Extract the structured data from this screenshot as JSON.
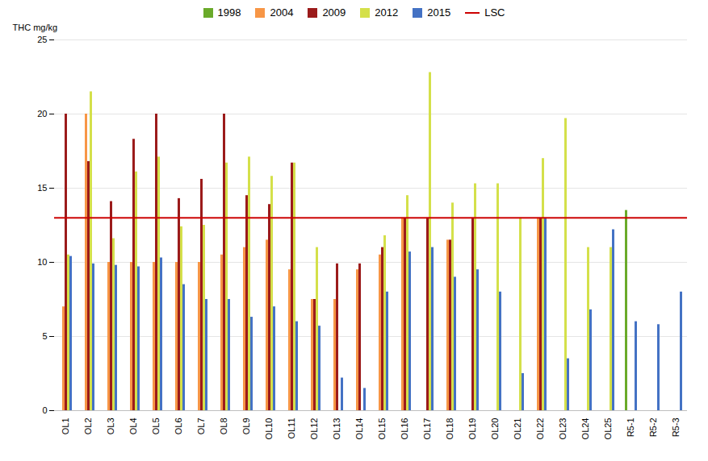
{
  "chart_data": {
    "type": "bar",
    "categories": [
      "OL1",
      "OL2",
      "OL3",
      "OL4",
      "OL5",
      "OL6",
      "OL7",
      "OL8",
      "OL9",
      "OL10",
      "OL11",
      "OL12",
      "OL13",
      "OL14",
      "OL15",
      "OL16",
      "OL17",
      "OL18",
      "OL19",
      "OL20",
      "OL21",
      "OL22",
      "OL23",
      "OL24",
      "OL25",
      "R5-1",
      "R5-2",
      "R5-3"
    ],
    "series": [
      {
        "name": "1998",
        "color": "#6aaa2a",
        "values": [
          null,
          null,
          null,
          null,
          null,
          null,
          null,
          null,
          null,
          null,
          null,
          null,
          null,
          null,
          null,
          null,
          null,
          null,
          null,
          null,
          null,
          null,
          null,
          null,
          null,
          13.5,
          null,
          null
        ]
      },
      {
        "name": "2004",
        "color": "#f79646",
        "values": [
          7.0,
          20.0,
          10.0,
          10.0,
          10.0,
          10.0,
          10.0,
          10.5,
          11.0,
          11.5,
          9.5,
          7.5,
          7.5,
          9.5,
          10.5,
          13.0,
          null,
          11.5,
          null,
          null,
          null,
          13.0,
          null,
          null,
          null,
          null,
          null,
          null
        ]
      },
      {
        "name": "2009",
        "color": "#9b1b1b",
        "values": [
          20.0,
          16.8,
          14.1,
          18.3,
          20.0,
          14.3,
          15.6,
          20.0,
          14.5,
          13.9,
          16.7,
          7.5,
          9.9,
          9.9,
          11.0,
          13.0,
          13.0,
          11.5,
          13.0,
          null,
          null,
          13.0,
          null,
          null,
          null,
          null,
          null,
          null
        ]
      },
      {
        "name": "2012",
        "color": "#d4e04a",
        "values": [
          10.5,
          21.5,
          11.6,
          16.1,
          17.1,
          12.4,
          12.5,
          16.7,
          17.1,
          15.8,
          16.7,
          11.0,
          null,
          null,
          11.8,
          14.5,
          22.8,
          14.0,
          15.3,
          15.3,
          13.0,
          17.0,
          19.7,
          11.0,
          11.0,
          null,
          null,
          null
        ]
      },
      {
        "name": "2015",
        "color": "#4472c4",
        "values": [
          10.4,
          9.9,
          9.8,
          9.7,
          10.3,
          8.5,
          7.5,
          7.5,
          6.3,
          7.0,
          6.0,
          5.7,
          2.2,
          1.5,
          8.0,
          10.7,
          11.0,
          9.0,
          9.5,
          8.0,
          2.5,
          13.0,
          3.5,
          6.8,
          12.2,
          6.0,
          5.8,
          8.0
        ]
      }
    ],
    "reference_lines": [
      {
        "name": "LSC",
        "value": 13.0,
        "color": "#cc0000"
      }
    ],
    "ylabel": "THC mg/kg",
    "ylim": [
      0,
      25
    ],
    "yticks": [
      0,
      5,
      10,
      15,
      20,
      25
    ],
    "grid": true,
    "legend": "top"
  }
}
